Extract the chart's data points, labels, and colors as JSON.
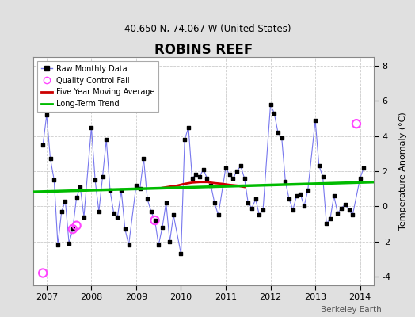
{
  "title": "ROBINS REEF",
  "subtitle": "40.650 N, 74.067 W (United States)",
  "ylabel": "Temperature Anomaly (°C)",
  "watermark": "Berkeley Earth",
  "ylim": [
    -4.5,
    8.5
  ],
  "xlim": [
    2006.7,
    2014.3
  ],
  "bg_color": "#e0e0e0",
  "plot_bg_color": "#ffffff",
  "grid_color": "#cccccc",
  "raw_x": [
    2006.917,
    2007.0,
    2007.083,
    2007.167,
    2007.25,
    2007.333,
    2007.417,
    2007.5,
    2007.583,
    2007.667,
    2007.75,
    2007.833,
    2008.0,
    2008.083,
    2008.167,
    2008.25,
    2008.333,
    2008.417,
    2008.5,
    2008.583,
    2008.667,
    2008.75,
    2008.833,
    2009.0,
    2009.083,
    2009.167,
    2009.25,
    2009.333,
    2009.417,
    2009.5,
    2009.583,
    2009.667,
    2009.75,
    2009.833,
    2010.0,
    2010.083,
    2010.167,
    2010.25,
    2010.333,
    2010.417,
    2010.5,
    2010.583,
    2010.667,
    2010.75,
    2010.833,
    2011.0,
    2011.083,
    2011.167,
    2011.25,
    2011.333,
    2011.417,
    2011.5,
    2011.583,
    2011.667,
    2011.75,
    2011.833,
    2012.0,
    2012.083,
    2012.167,
    2012.25,
    2012.333,
    2012.417,
    2012.5,
    2012.583,
    2012.667,
    2012.75,
    2012.833,
    2013.0,
    2013.083,
    2013.167,
    2013.25,
    2013.333,
    2013.417,
    2013.5,
    2013.583,
    2013.667,
    2013.75,
    2013.833,
    2014.0,
    2014.083
  ],
  "raw_y": [
    3.5,
    5.2,
    2.7,
    1.5,
    -2.2,
    -0.3,
    0.3,
    -2.1,
    -1.3,
    0.5,
    1.1,
    -0.6,
    4.5,
    1.5,
    -0.3,
    1.7,
    3.8,
    0.9,
    -0.4,
    -0.6,
    0.9,
    -1.3,
    -2.2,
    1.2,
    1.0,
    2.7,
    0.4,
    -0.3,
    -0.8,
    -2.2,
    -1.2,
    0.2,
    -2.0,
    -0.5,
    -2.7,
    3.8,
    4.5,
    1.6,
    1.8,
    1.7,
    2.1,
    1.6,
    1.2,
    0.2,
    -0.5,
    2.2,
    1.8,
    1.6,
    2.0,
    2.3,
    1.6,
    0.2,
    -0.1,
    0.4,
    -0.5,
    -0.2,
    5.8,
    5.3,
    4.2,
    3.9,
    1.4,
    0.4,
    -0.2,
    0.6,
    0.7,
    0.0,
    0.9,
    4.9,
    2.3,
    1.7,
    -1.0,
    -0.7,
    0.6,
    -0.4,
    -0.1,
    0.1,
    -0.2,
    -0.5,
    1.6,
    2.2
  ],
  "qc_fail_x": [
    2006.917,
    2007.583,
    2007.667,
    2009.417,
    2013.917
  ],
  "qc_fail_y": [
    -3.8,
    -1.3,
    -1.1,
    -0.8,
    4.7
  ],
  "moving_avg_x": [
    2009.583,
    2009.75,
    2009.917,
    2010.083,
    2010.25,
    2010.417,
    2010.583,
    2010.75,
    2010.917,
    2011.083,
    2011.25,
    2011.417
  ],
  "moving_avg_y": [
    1.05,
    1.12,
    1.18,
    1.28,
    1.35,
    1.38,
    1.38,
    1.32,
    1.28,
    1.22,
    1.18,
    1.1
  ],
  "trend_x": [
    2006.7,
    2014.3
  ],
  "trend_y": [
    0.82,
    1.38
  ],
  "raw_line_color": "#7777ee",
  "raw_marker_color": "#000000",
  "qc_color": "#ff44ff",
  "moving_avg_color": "#cc0000",
  "trend_color": "#00bb00",
  "legend_loc": "upper left"
}
